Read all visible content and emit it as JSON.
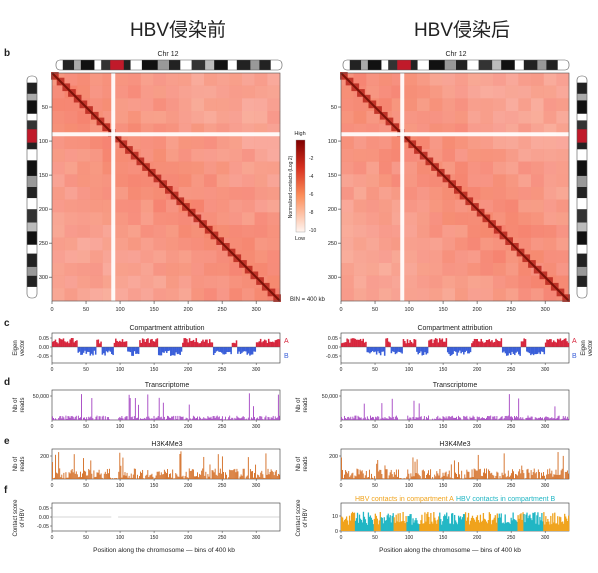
{
  "header": {
    "left": "HBV侵染前",
    "right": "HBV侵染后"
  },
  "panel_labels": {
    "b": "b",
    "c": "c",
    "d": "d",
    "e": "e",
    "f": "f"
  },
  "chromosome_label": "Chr 12",
  "colors": {
    "heat": "#e34a33",
    "heat_dark": "#9e1c14",
    "compA": "#d7263d",
    "compB": "#3a5fd9",
    "rna": "#a443c2",
    "chip": "#d2691e",
    "hbvA": "#f0a31c",
    "hbvB": "#21b6c4"
  },
  "matrix": {
    "ticks": [
      "50",
      "100",
      "150",
      "200",
      "250",
      "300"
    ],
    "xticks": [
      "0",
      "50",
      "100",
      "150",
      "200",
      "250",
      "300"
    ]
  },
  "colorbar": {
    "title": "Normalized contacts (Log 2)",
    "high": "High",
    "low": "Low",
    "ticks": [
      "-2",
      "-4",
      "-6",
      "-8",
      "-10"
    ]
  },
  "bin_note": "BIN = 400 kb",
  "compartment": {
    "title": "Compartment attribution",
    "ylabel1": "Eigen",
    "ylabel2": "vector",
    "yticks": [
      "0.05",
      "0.00",
      "-0.05"
    ],
    "A": "A",
    "B": "B"
  },
  "transcriptome": {
    "title": "Transcriptome",
    "ylabel1": "Nb of",
    "ylabel2": "reads",
    "ytick": "50,000"
  },
  "h3k4me3": {
    "title": "H3K4Me3",
    "ylabel1": "Nb of",
    "ylabel2": "reads",
    "ytick": "200"
  },
  "hbv": {
    "ylabel1": "Contact score",
    "ylabel2": "of HBV",
    "left_yticks": [
      "0.05",
      "0.00",
      "-0.05"
    ],
    "right_yticks": [
      "10",
      "0"
    ],
    "legendA": "HBV contacts in compartment A",
    "legendB": "HBV contacts in compartment B"
  },
  "xaxis_label": "Position along the chromosome — bins of 400 kb",
  "track_xticks": [
    "0",
    "50",
    "100",
    "150",
    "200",
    "250",
    "300"
  ]
}
